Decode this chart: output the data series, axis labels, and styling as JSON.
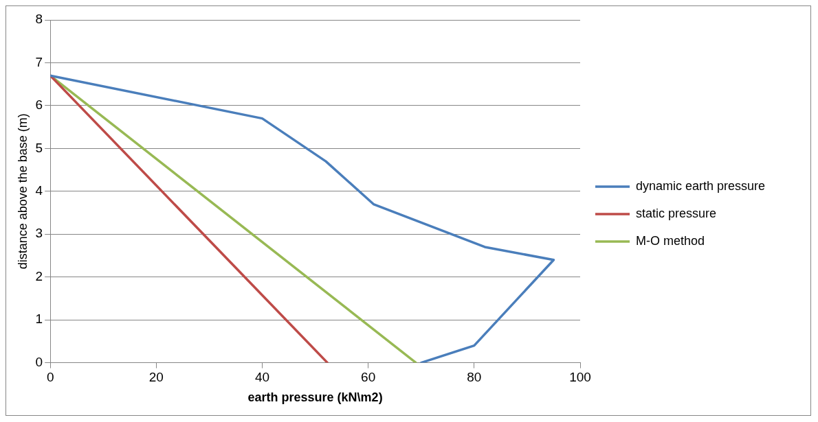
{
  "chart_data": {
    "type": "line",
    "xlabel": "earth pressure (kN\\m2)",
    "ylabel": "distance above the base (m)",
    "xlim": [
      0,
      100
    ],
    "xticks": [
      0,
      20,
      40,
      60,
      80,
      100
    ],
    "ylim": [
      0,
      8
    ],
    "yticks": [
      0,
      1,
      2,
      3,
      4,
      5,
      6,
      7,
      8
    ],
    "grid": "y",
    "legend": "right",
    "marker": "none",
    "line_style": "solid",
    "series": [
      {
        "name": "dynamic earth pressure",
        "color": "#4a7ebb",
        "x": [
          0,
          40,
          52,
          61,
          82,
          95,
          80,
          70
        ],
        "values": [
          6.7,
          5.7,
          4.7,
          3.7,
          2.7,
          2.4,
          0.4,
          0
        ]
      },
      {
        "name": "static pressure",
        "color": "#be4b48",
        "x": [
          0,
          52.3
        ],
        "values": [
          6.7,
          0
        ]
      },
      {
        "name": "M-O method",
        "color": "#98b954",
        "x": [
          0,
          69
        ],
        "values": [
          6.7,
          0
        ]
      }
    ]
  }
}
